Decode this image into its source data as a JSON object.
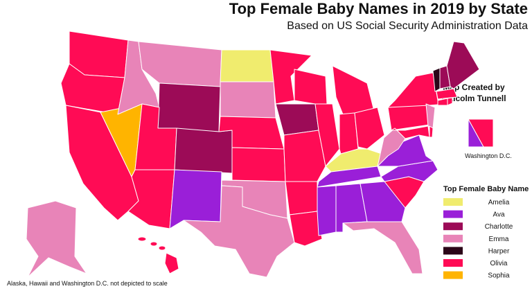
{
  "title": "Top Female Baby Names in 2019 by State",
  "subtitle": "Based on US Social Security Administration Data",
  "credit": [
    "Map Created by",
    "Malcolm Tunnell"
  ],
  "inset_label": "Washington D.C.",
  "legend": {
    "title": "Top Female Baby Name",
    "items": [
      {
        "name": "Amelia",
        "color": "#f0ec6e"
      },
      {
        "name": "Ava",
        "color": "#9a1fd8"
      },
      {
        "name": "Charlotte",
        "color": "#9c0b57"
      },
      {
        "name": "Emma",
        "color": "#e884b8"
      },
      {
        "name": "Harper",
        "color": "#2b0518"
      },
      {
        "name": "Olivia",
        "color": "#ff0b55"
      },
      {
        "name": "Sophia",
        "color": "#ffb400"
      }
    ]
  },
  "note": "Alaska, Hawaii and Washington D.C. not depicted to scale"
}
